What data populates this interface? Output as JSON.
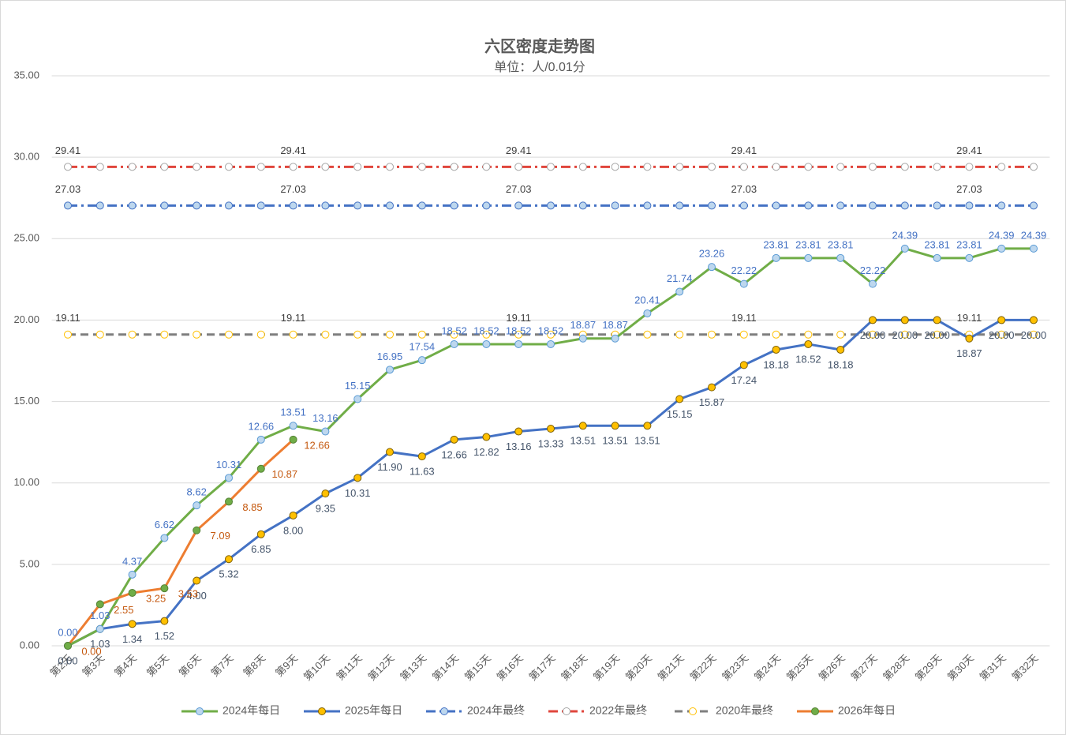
{
  "chart_data": {
    "type": "line",
    "title": "六区密度走势图",
    "subtitle": "单位：人/0.01分",
    "categories": [
      "第2天",
      "第3天",
      "第4天",
      "第5天",
      "第6天",
      "第7天",
      "第8天",
      "第9天",
      "第10天",
      "第11天",
      "第12天",
      "第13天",
      "第14天",
      "第15天",
      "第16天",
      "第17天",
      "第18天",
      "第19天",
      "第20天",
      "第21天",
      "第22天",
      "第23天",
      "第24天",
      "第25天",
      "第26天",
      "第27天",
      "第28天",
      "第29天",
      "第30天",
      "第31天",
      "第32天"
    ],
    "ylim": [
      0,
      35
    ],
    "yticks": [
      {
        "value": 0,
        "label": "0.00"
      },
      {
        "value": 5,
        "label": "5.00"
      },
      {
        "value": 10,
        "label": "10.00"
      },
      {
        "value": 15,
        "label": "15.00"
      },
      {
        "value": 20,
        "label": "20.00"
      },
      {
        "value": 25,
        "label": "25.00"
      },
      {
        "value": 30,
        "label": "30.00"
      },
      {
        "value": 35,
        "label": "35.00"
      }
    ],
    "grid": true,
    "legend": "bottom",
    "series": [
      {
        "name": "2024年每日",
        "color": "#70ad47",
        "marker_fill": "#bdd7ee",
        "marker_stroke": "#5b9bd5",
        "label_color": "#4472c4",
        "dash": "solid",
        "values": [
          0.0,
          1.03,
          4.37,
          6.62,
          8.62,
          10.31,
          12.66,
          13.51,
          13.16,
          15.15,
          16.95,
          17.54,
          18.52,
          18.52,
          18.52,
          18.52,
          18.87,
          18.87,
          20.41,
          21.74,
          23.26,
          22.22,
          23.81,
          23.81,
          23.81,
          22.22,
          24.39,
          23.81,
          23.81,
          24.39,
          24.39
        ],
        "value_labels": [
          "0.00",
          "1.03",
          "4.37",
          "6.62",
          "8.62",
          "10.31",
          "12.66",
          "13.51",
          "13.16",
          "15.15",
          "16.95",
          "17.54",
          "18.52",
          "18.52",
          "18.52",
          "18.52",
          "18.87",
          "18.87",
          "20.41",
          "21.74",
          "23.26",
          "22.22",
          "23.81",
          "23.81",
          "23.81",
          "22.22",
          "24.39",
          "23.81",
          "23.81",
          "24.39",
          "24.39"
        ]
      },
      {
        "name": "2025年每日",
        "color": "#4472c4",
        "marker_fill": "#ffc000",
        "marker_stroke": "#7f6000",
        "label_color": "#44546a",
        "dash": "solid",
        "values": [
          0.0,
          1.03,
          1.34,
          1.52,
          4.0,
          5.32,
          6.85,
          8.0,
          9.35,
          10.31,
          11.9,
          11.63,
          12.66,
          12.82,
          13.16,
          13.33,
          13.51,
          13.51,
          13.51,
          15.15,
          15.87,
          17.24,
          18.18,
          18.52,
          18.18,
          20.0,
          20.0,
          20.0,
          18.87,
          20.0,
          20.0
        ],
        "value_labels": [
          "0.00",
          "1.03",
          "1.34",
          "1.52",
          "4.00",
          "5.32",
          "6.85",
          "8.00",
          "9.35",
          "10.31",
          "11.90",
          "11.63",
          "12.66",
          "12.82",
          "13.16",
          "13.33",
          "13.51",
          "13.51",
          "13.51",
          "15.15",
          "15.87",
          "17.24",
          "18.18",
          "18.52",
          "18.18",
          "20.00",
          "20.00",
          "20.00",
          "18.87",
          "20.00",
          "20.00"
        ]
      },
      {
        "name": "2024年最终",
        "color": "#4472c4",
        "marker_fill": "#bdd7ee",
        "marker_stroke": "#4472c4",
        "label_color": "#404040",
        "dash": "dashdot",
        "values": [
          27.03,
          27.03,
          27.03,
          27.03,
          27.03,
          27.03,
          27.03,
          27.03,
          27.03,
          27.03,
          27.03,
          27.03,
          27.03,
          27.03,
          27.03,
          27.03,
          27.03,
          27.03,
          27.03,
          27.03,
          27.03,
          27.03,
          27.03,
          27.03,
          27.03,
          27.03,
          27.03,
          27.03,
          27.03,
          27.03,
          27.03
        ]
      },
      {
        "name": "2022年最终",
        "color": "#e0463c",
        "marker_fill": "#ffffff",
        "marker_stroke": "#a6a6a6",
        "label_color": "#404040",
        "dash": "dashdot",
        "values": [
          29.41,
          29.41,
          29.41,
          29.41,
          29.41,
          29.41,
          29.41,
          29.41,
          29.41,
          29.41,
          29.41,
          29.41,
          29.41,
          29.41,
          29.41,
          29.41,
          29.41,
          29.41,
          29.41,
          29.41,
          29.41,
          29.41,
          29.41,
          29.41,
          29.41,
          29.41,
          29.41,
          29.41,
          29.41,
          29.41,
          29.41
        ]
      },
      {
        "name": "2020年最终",
        "color": "#7f7f7f",
        "marker_fill": "#ffffff",
        "marker_stroke": "#ffc000",
        "label_color": "#404040",
        "dash": "dash",
        "values": [
          19.11,
          19.11,
          19.11,
          19.11,
          19.11,
          19.11,
          19.11,
          19.11,
          19.11,
          19.11,
          19.11,
          19.11,
          19.11,
          19.11,
          19.11,
          19.11,
          19.11,
          19.11,
          19.11,
          19.11,
          19.11,
          19.11,
          19.11,
          19.11,
          19.11,
          19.11,
          19.11,
          19.11,
          19.11,
          19.11,
          19.11
        ]
      },
      {
        "name": "2026年每日",
        "color": "#ed7d31",
        "marker_fill": "#70ad47",
        "marker_stroke": "#548235",
        "label_color": "#c55a11",
        "dash": "solid",
        "values": [
          0.0,
          2.55,
          3.25,
          3.53,
          7.09,
          8.85,
          10.87,
          12.66,
          null,
          null,
          null,
          null,
          null,
          null,
          null,
          null,
          null,
          null,
          null,
          null,
          null,
          null,
          null,
          null,
          null,
          null,
          null,
          null,
          null,
          null,
          null
        ],
        "value_labels": [
          "0.00",
          "2.55",
          "3.25",
          "3.53",
          "7.09",
          "8.85",
          "10.87",
          "12.66",
          null,
          null,
          null,
          null,
          null,
          null,
          null,
          null,
          null,
          null,
          null,
          null,
          null,
          null,
          null,
          null,
          null,
          null,
          null,
          null,
          null,
          null,
          null
        ]
      }
    ]
  }
}
